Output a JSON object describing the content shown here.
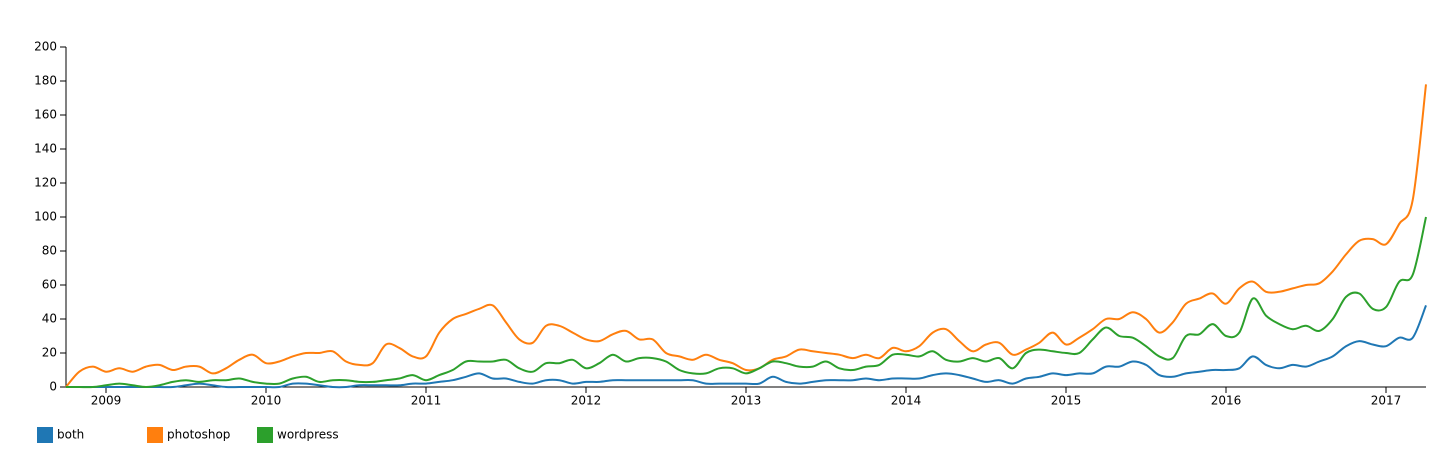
{
  "chart_data": {
    "type": "line",
    "x": [
      2008.75,
      2008.833,
      2008.917,
      2009,
      2009.083,
      2009.167,
      2009.25,
      2009.333,
      2009.417,
      2009.5,
      2009.583,
      2009.667,
      2009.75,
      2009.833,
      2009.917,
      2010,
      2010.083,
      2010.167,
      2010.25,
      2010.333,
      2010.417,
      2010.5,
      2010.583,
      2010.667,
      2010.75,
      2010.833,
      2010.917,
      2011,
      2011.083,
      2011.167,
      2011.25,
      2011.333,
      2011.417,
      2011.5,
      2011.583,
      2011.667,
      2011.75,
      2011.833,
      2011.917,
      2012,
      2012.083,
      2012.167,
      2012.25,
      2012.333,
      2012.417,
      2012.5,
      2012.583,
      2012.667,
      2012.75,
      2012.833,
      2012.917,
      2013,
      2013.083,
      2013.167,
      2013.25,
      2013.333,
      2013.417,
      2013.5,
      2013.583,
      2013.667,
      2013.75,
      2013.833,
      2013.917,
      2014,
      2014.083,
      2014.167,
      2014.25,
      2014.333,
      2014.417,
      2014.5,
      2014.583,
      2014.667,
      2014.75,
      2014.833,
      2014.917,
      2015,
      2015.083,
      2015.167,
      2015.25,
      2015.333,
      2015.417,
      2015.5,
      2015.583,
      2015.667,
      2015.75,
      2015.833,
      2015.917,
      2016,
      2016.083,
      2016.167,
      2016.25,
      2016.333,
      2016.417,
      2016.5,
      2016.583,
      2016.667,
      2016.75,
      2016.833,
      2016.917,
      2017,
      2017.083,
      2017.167,
      2017.25
    ],
    "series": [
      {
        "name": "both",
        "color": "#1f77b4",
        "values": [
          0,
          0,
          0,
          0,
          0,
          0,
          0,
          0,
          0,
          1,
          2,
          1,
          0,
          0,
          0,
          0,
          0,
          2,
          2,
          1,
          0,
          0,
          1,
          1,
          1,
          1,
          2,
          2,
          3,
          4,
          6,
          8,
          5,
          5,
          3,
          2,
          4,
          4,
          2,
          3,
          3,
          4,
          4,
          4,
          4,
          4,
          4,
          4,
          2,
          2,
          2,
          2,
          2,
          6,
          3,
          2,
          3,
          4,
          4,
          4,
          5,
          4,
          5,
          5,
          5,
          7,
          8,
          7,
          5,
          3,
          4,
          2,
          5,
          6,
          8,
          7,
          8,
          8,
          12,
          12,
          15,
          13,
          7,
          6,
          8,
          9,
          10,
          10,
          11,
          18,
          13,
          11,
          13,
          12,
          15,
          18,
          24,
          27,
          25,
          24,
          29,
          29,
          48
        ]
      },
      {
        "name": "photoshop",
        "color": "#ff7f0e",
        "values": [
          0,
          9,
          12,
          9,
          11,
          9,
          12,
          13,
          10,
          12,
          12,
          8,
          11,
          16,
          19,
          14,
          15,
          18,
          20,
          20,
          21,
          15,
          13,
          14,
          25,
          23,
          18,
          18,
          32,
          40,
          43,
          46,
          48,
          38,
          28,
          26,
          36,
          36,
          32,
          28,
          27,
          31,
          33,
          28,
          28,
          20,
          18,
          16,
          19,
          16,
          14,
          10,
          11,
          16,
          18,
          22,
          21,
          20,
          19,
          17,
          19,
          17,
          23,
          21,
          24,
          32,
          34,
          27,
          21,
          25,
          26,
          19,
          22,
          26,
          32,
          25,
          29,
          34,
          40,
          40,
          44,
          40,
          32,
          38,
          49,
          52,
          55,
          49,
          58,
          62,
          56,
          56,
          58,
          60,
          61,
          68,
          78,
          86,
          87,
          84,
          96,
          110,
          178
        ]
      },
      {
        "name": "wordpress",
        "color": "#2ca02c",
        "values": [
          0,
          0,
          0,
          1,
          2,
          1,
          0,
          1,
          3,
          4,
          3,
          4,
          4,
          5,
          3,
          2,
          2,
          5,
          6,
          3,
          4,
          4,
          3,
          3,
          4,
          5,
          7,
          4,
          7,
          10,
          15,
          15,
          15,
          16,
          11,
          9,
          14,
          14,
          16,
          11,
          14,
          19,
          15,
          17,
          17,
          15,
          10,
          8,
          8,
          11,
          11,
          8,
          11,
          15,
          14,
          12,
          12,
          15,
          11,
          10,
          12,
          13,
          19,
          19,
          18,
          21,
          16,
          15,
          17,
          15,
          17,
          11,
          20,
          22,
          21,
          20,
          20,
          28,
          35,
          30,
          29,
          24,
          18,
          17,
          30,
          31,
          37,
          30,
          32,
          52,
          42,
          37,
          34,
          36,
          33,
          40,
          53,
          55,
          46,
          47,
          62,
          66,
          100
        ]
      }
    ],
    "xlim": [
      2008.75,
      2017.25
    ],
    "xticks": [
      2009,
      2010,
      2011,
      2012,
      2013,
      2014,
      2015,
      2016,
      2017
    ],
    "ylim": [
      0,
      200
    ],
    "yticks": [
      0,
      20,
      40,
      60,
      80,
      100,
      120,
      140,
      160,
      180,
      200
    ],
    "legend": "bottom-left"
  }
}
